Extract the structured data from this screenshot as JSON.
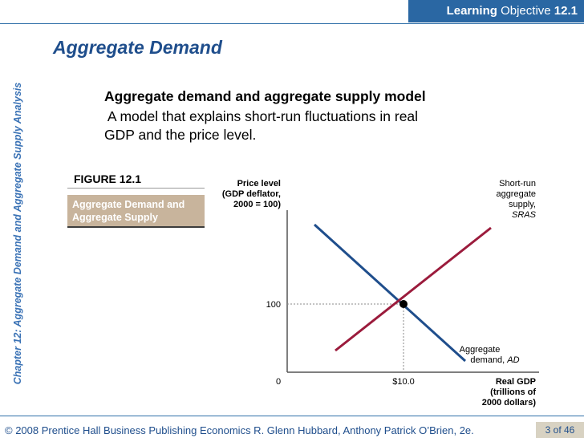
{
  "header": {
    "learning_label": "Learning",
    "objective_label": "Objective",
    "objective_number": "12.1"
  },
  "sidebar": {
    "chapter_text": "Chapter 12:  Aggregate Demand and Aggregate Supply Analysis"
  },
  "slide": {
    "title": "Aggregate Demand",
    "term": "Aggregate demand and aggregate supply model",
    "definition_line1": " A model that explains short-run fluctuations in real",
    "definition_line2": "GDP and the price level."
  },
  "figure": {
    "label": "FIGURE 12.1",
    "caption_line1": "Aggregate Demand and",
    "caption_line2": "Aggregate Supply",
    "y_axis_label": [
      "Price level",
      "(GDP deflator,",
      "2000 = 100)"
    ],
    "x_axis_label": [
      "Real GDP",
      "(trillions of",
      "2000 dollars)"
    ],
    "origin_label": "0",
    "equilibrium_price_label": "100",
    "equilibrium_gdp_label": "$10.0",
    "sras_label": [
      "Short-run",
      "aggregate",
      "supply,",
      "SRAS"
    ],
    "ad_label": [
      "Aggregate",
      "demand, ",
      "AD"
    ],
    "colors": {
      "ad": "#1f4e8c",
      "sras": "#9b1b3c"
    }
  },
  "footer": {
    "copyright": "© 2008 Prentice Hall Business Publishing   Economics  R. Glenn Hubbard, Anthony Patrick O’Brien, 2e.",
    "page": "3 of 46"
  }
}
